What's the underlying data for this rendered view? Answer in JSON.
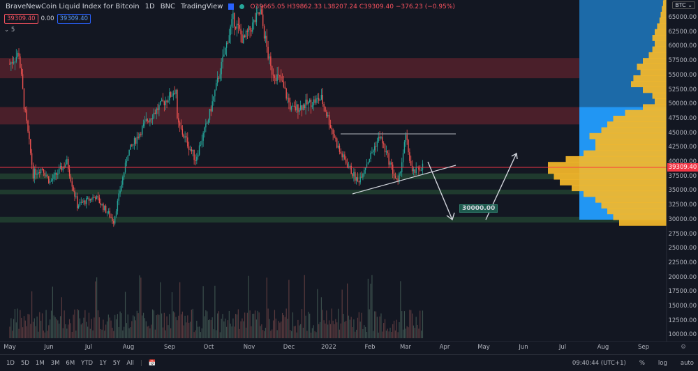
{
  "header": {
    "symbol": "BraveNewCoin Liquid Index for Bitcoin",
    "interval": "1D",
    "exchange": "BNC",
    "source": "TradingView",
    "ohlc": "O39665.05 H39862.33 L38207.24 C39309.40 −376.23 (−0.95%)"
  },
  "badges": {
    "bid": "39309.40",
    "spread": "0.00",
    "ask": "39309.40",
    "indicators_collapsed": "5"
  },
  "price_axis": {
    "currency": "BTC",
    "labels": [
      "65000.00",
      "62500.00",
      "60000.00",
      "57500.00",
      "55000.00",
      "52500.00",
      "50000.00",
      "47500.00",
      "45000.00",
      "42500.00",
      "40000.00",
      "37500.00",
      "35000.00",
      "32500.00",
      "30000.00",
      "27500.00",
      "25000.00",
      "22500.00",
      "20000.00",
      "17500.00",
      "15000.00",
      "12500.00",
      "10000.00"
    ],
    "current_price": "39309.40"
  },
  "time_axis": {
    "labels": [
      "May",
      "Jun",
      "Jul",
      "Aug",
      "Sep",
      "Oct",
      "Nov",
      "Dec",
      "2022",
      "Feb",
      "Mar",
      "Apr",
      "May",
      "Jun",
      "Jul",
      "Aug",
      "Sep"
    ]
  },
  "annotation": {
    "target_label": "30000.00"
  },
  "colors": {
    "up": "#26a69a",
    "down": "#ef5350",
    "resistance_zone": "#4a1f2a",
    "support_zone": "#1f3a2e",
    "price_line": "#f23645",
    "profile_yellow": "#f5b92a",
    "profile_blue": "#2196f3"
  },
  "zones": {
    "resistance": [
      [
        54500,
        58000
      ],
      [
        46500,
        49500
      ]
    ],
    "support": [
      [
        37000,
        38000
      ],
      [
        34400,
        35200
      ],
      [
        29500,
        30500
      ]
    ]
  },
  "chart_data": {
    "type": "candlestick",
    "price_path": [
      [
        "2021-05-01",
        57000
      ],
      [
        "2021-05-08",
        58800
      ],
      [
        "2021-05-12",
        50000
      ],
      [
        "2021-05-19",
        38000
      ],
      [
        "2021-05-26",
        39000
      ],
      [
        "2021-06-01",
        36500
      ],
      [
        "2021-06-14",
        40000
      ],
      [
        "2021-06-22",
        32500
      ],
      [
        "2021-07-06",
        34000
      ],
      [
        "2021-07-20",
        29800
      ],
      [
        "2021-07-31",
        41500
      ],
      [
        "2021-08-14",
        47000
      ],
      [
        "2021-08-22",
        49000
      ],
      [
        "2021-09-06",
        52600
      ],
      [
        "2021-09-07",
        46800
      ],
      [
        "2021-09-21",
        40500
      ],
      [
        "2021-10-01",
        47500
      ],
      [
        "2021-10-20",
        65000
      ],
      [
        "2021-10-28",
        61000
      ],
      [
        "2021-11-10",
        66000
      ],
      [
        "2021-11-18",
        56000
      ],
      [
        "2021-11-26",
        54000
      ],
      [
        "2021-12-04",
        49000
      ],
      [
        "2021-12-27",
        51000
      ],
      [
        "2022-01-10",
        41800
      ],
      [
        "2022-01-24",
        36500
      ],
      [
        "2022-02-10",
        44500
      ],
      [
        "2022-02-24",
        36000
      ],
      [
        "2022-03-02",
        44400
      ],
      [
        "2022-03-07",
        38000
      ],
      [
        "2022-03-15",
        39309
      ]
    ],
    "volume_profile": {
      "bin_start": 29000,
      "bin_size": 1000,
      "values": [
        0.4,
        0.45,
        0.5,
        0.55,
        0.6,
        0.7,
        0.8,
        0.9,
        0.95,
        1.0,
        1.0,
        0.85,
        0.7,
        0.6,
        0.6,
        0.65,
        0.55,
        0.5,
        0.45,
        0.35,
        0.2,
        0.1,
        0.12,
        0.2,
        0.3,
        0.28,
        0.22,
        0.25,
        0.2,
        0.15,
        0.12,
        0.1,
        0.12,
        0.1,
        0.08,
        0.06,
        0.05,
        0.04,
        0.03,
        0.02
      ]
    }
  },
  "bottom": {
    "ranges": [
      "1D",
      "5D",
      "1M",
      "3M",
      "6M",
      "YTD",
      "1Y",
      "5Y",
      "All"
    ],
    "time": "09:40:44 (UTC+1)",
    "percent": "%",
    "log": "log",
    "auto": "auto"
  }
}
